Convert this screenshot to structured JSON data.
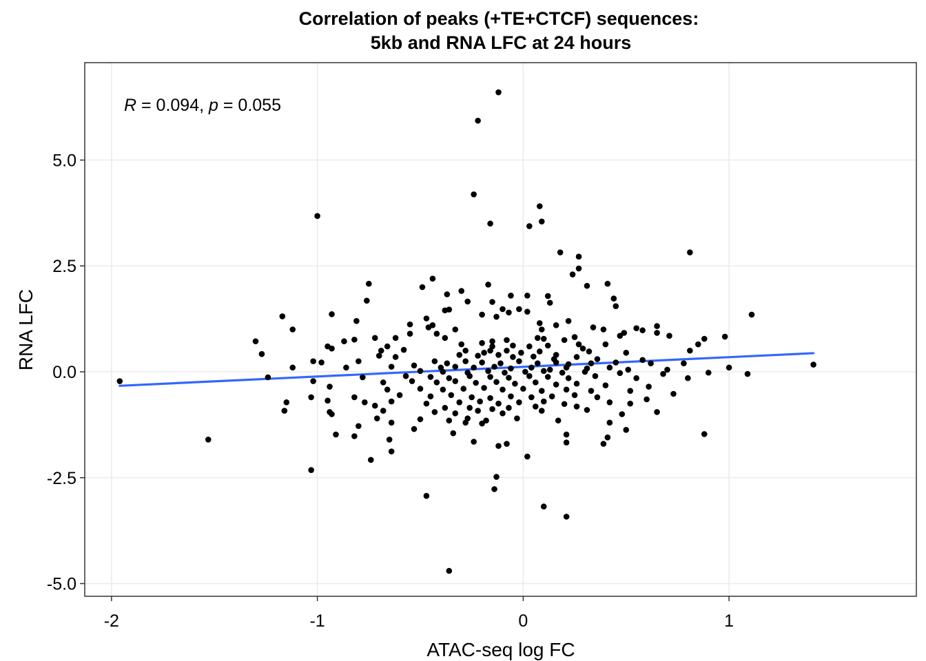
{
  "chart_data": {
    "type": "scatter",
    "title_line1": "Correlation of peaks (+TE+CTCF) sequences:",
    "title_line2": "5kb and RNA LFC at 24 hours",
    "xlabel": "ATAC-seq log FC",
    "ylabel": "RNA LFC",
    "xlim": [
      -2.13,
      1.91
    ],
    "ylim": [
      -5.3,
      7.3
    ],
    "x_ticks": [
      -2,
      -1,
      0,
      1
    ],
    "x_tick_labels": [
      "-2",
      "-1",
      "0",
      "1"
    ],
    "y_ticks": [
      -5,
      -2.5,
      0,
      2.5,
      5
    ],
    "y_tick_labels": [
      "-5.0",
      "-2.5",
      "0.0",
      "2.5",
      "5.0"
    ],
    "grid": true,
    "annotation": {
      "r_symbol": "R",
      "r_text": " = 0.094, ",
      "p_symbol": "p",
      "p_text": " = 0.055"
    },
    "fit_line": {
      "color": "#3366FF",
      "x": [
        -1.96,
        1.41
      ],
      "y": [
        -0.33,
        0.44
      ]
    },
    "point_color": "#000000",
    "points": [
      [
        -0.12,
        6.6
      ],
      [
        -0.22,
        5.93
      ],
      [
        -0.24,
        4.19
      ],
      [
        -1.0,
        3.68
      ],
      [
        -0.16,
        3.5
      ],
      [
        0.08,
        3.91
      ],
      [
        0.09,
        3.55
      ],
      [
        0.03,
        3.44
      ],
      [
        0.18,
        2.82
      ],
      [
        0.81,
        2.82
      ],
      [
        0.27,
        2.72
      ],
      [
        0.27,
        2.44
      ],
      [
        0.24,
        2.3
      ],
      [
        0.41,
        2.08
      ],
      [
        0.31,
        2.03
      ],
      [
        -0.75,
        2.08
      ],
      [
        -0.44,
        2.2
      ],
      [
        -0.49,
        2.0
      ],
      [
        -0.17,
        2.06
      ],
      [
        -0.3,
        1.91
      ],
      [
        -0.37,
        1.83
      ],
      [
        -0.06,
        1.8
      ],
      [
        0.02,
        1.8
      ],
      [
        0.12,
        1.79
      ],
      [
        -0.27,
        1.66
      ],
      [
        -0.15,
        1.65
      ],
      [
        -0.76,
        1.68
      ],
      [
        0.44,
        1.73
      ],
      [
        0.45,
        1.55
      ],
      [
        0.13,
        1.63
      ],
      [
        -0.36,
        1.47
      ],
      [
        -0.38,
        1.45
      ],
      [
        -0.1,
        1.48
      ],
      [
        -0.07,
        1.4
      ],
      [
        -0.02,
        1.48
      ],
      [
        0.02,
        1.42
      ],
      [
        -0.93,
        1.36
      ],
      [
        -1.17,
        1.31
      ],
      [
        1.11,
        1.35
      ],
      [
        -0.2,
        1.35
      ],
      [
        -0.13,
        1.3
      ],
      [
        -0.47,
        1.26
      ],
      [
        0.22,
        1.2
      ],
      [
        -0.81,
        1.2
      ],
      [
        0.08,
        1.15
      ],
      [
        0.16,
        1.1
      ],
      [
        -0.55,
        1.12
      ],
      [
        -0.44,
        1.1
      ],
      [
        -0.46,
        1.05
      ],
      [
        0.65,
        1.08
      ],
      [
        0.55,
        1.03
      ],
      [
        -1.12,
        1.0
      ],
      [
        0.34,
        1.05
      ],
      [
        -0.33,
        1.0
      ],
      [
        0.09,
        1.0
      ],
      [
        0.39,
        1.0
      ],
      [
        0.58,
        0.98
      ],
      [
        -0.55,
        0.9
      ],
      [
        0.65,
        0.92
      ],
      [
        0.49,
        0.92
      ],
      [
        -0.42,
        0.9
      ],
      [
        -0.38,
        0.8
      ],
      [
        -0.72,
        0.8
      ],
      [
        0.25,
        0.82
      ],
      [
        0.98,
        0.83
      ],
      [
        -0.87,
        0.72
      ],
      [
        -0.82,
        0.76
      ],
      [
        -0.62,
        0.8
      ],
      [
        -0.15,
        0.72
      ],
      [
        -0.08,
        0.75
      ],
      [
        0.07,
        0.8
      ],
      [
        0.1,
        0.78
      ],
      [
        0.2,
        0.75
      ],
      [
        0.47,
        0.85
      ],
      [
        0.71,
        0.85
      ],
      [
        -1.3,
        0.72
      ],
      [
        0.88,
        0.78
      ],
      [
        -0.95,
        0.6
      ],
      [
        -0.93,
        0.55
      ],
      [
        -0.66,
        0.6
      ],
      [
        -0.3,
        0.65
      ],
      [
        -0.2,
        0.68
      ],
      [
        -0.15,
        0.6
      ],
      [
        -0.05,
        0.62
      ],
      [
        0.03,
        0.6
      ],
      [
        0.12,
        0.62
      ],
      [
        0.27,
        0.65
      ],
      [
        0.29,
        0.55
      ],
      [
        0.4,
        0.65
      ],
      [
        0.85,
        0.65
      ],
      [
        -0.69,
        0.5
      ],
      [
        -0.58,
        0.52
      ],
      [
        -0.28,
        0.5
      ],
      [
        -0.19,
        0.45
      ],
      [
        -0.16,
        0.5
      ],
      [
        -0.08,
        0.5
      ],
      [
        -0.01,
        0.45
      ],
      [
        0.08,
        0.48
      ],
      [
        0.16,
        0.4
      ],
      [
        0.32,
        0.48
      ],
      [
        0.5,
        0.45
      ],
      [
        0.81,
        0.5
      ],
      [
        -1.27,
        0.42
      ],
      [
        -0.7,
        0.38
      ],
      [
        -0.62,
        0.35
      ],
      [
        -0.31,
        0.4
      ],
      [
        -0.22,
        0.38
      ],
      [
        -0.12,
        0.4
      ],
      [
        -0.05,
        0.35
      ],
      [
        0.05,
        0.36
      ],
      [
        0.15,
        0.3
      ],
      [
        0.26,
        0.35
      ],
      [
        0.36,
        0.3
      ],
      [
        0.58,
        0.28
      ],
      [
        -1.02,
        0.25
      ],
      [
        -0.98,
        0.22
      ],
      [
        -0.8,
        0.25
      ],
      [
        -0.43,
        0.25
      ],
      [
        -0.37,
        0.2
      ],
      [
        -0.28,
        0.25
      ],
      [
        -0.2,
        0.22
      ],
      [
        -0.11,
        0.2
      ],
      [
        -0.02,
        0.25
      ],
      [
        0.07,
        0.2
      ],
      [
        0.16,
        0.22
      ],
      [
        0.22,
        0.18
      ],
      [
        0.33,
        0.2
      ],
      [
        0.45,
        0.22
      ],
      [
        0.62,
        0.2
      ],
      [
        0.78,
        0.2
      ],
      [
        1.41,
        0.17
      ],
      [
        -1.12,
        0.1
      ],
      [
        -0.86,
        0.1
      ],
      [
        -0.64,
        0.12
      ],
      [
        -0.53,
        0.15
      ],
      [
        -0.4,
        0.1
      ],
      [
        -0.33,
        0.12
      ],
      [
        -0.24,
        0.1
      ],
      [
        -0.14,
        0.12
      ],
      [
        -0.06,
        0.08
      ],
      [
        0.04,
        0.1
      ],
      [
        0.13,
        0.05
      ],
      [
        0.21,
        0.1
      ],
      [
        0.31,
        0.08
      ],
      [
        0.42,
        0.1
      ],
      [
        0.51,
        0.05
      ],
      [
        0.7,
        0.05
      ],
      [
        1.0,
        0.1
      ],
      [
        -0.5,
        0.02
      ],
      [
        -0.39,
        0.0
      ],
      [
        -0.27,
        -0.02
      ],
      [
        -0.17,
        0.02
      ],
      [
        -0.09,
        -0.02
      ],
      [
        0.01,
        0.0
      ],
      [
        0.1,
        0.02
      ],
      [
        0.19,
        -0.02
      ],
      [
        0.3,
        0.0
      ],
      [
        0.47,
        -0.03
      ],
      [
        0.68,
        -0.05
      ],
      [
        0.9,
        -0.02
      ],
      [
        1.09,
        -0.05
      ],
      [
        -1.24,
        -0.13
      ],
      [
        -0.78,
        -0.13
      ],
      [
        -0.57,
        -0.1
      ],
      [
        -0.45,
        -0.12
      ],
      [
        -0.36,
        -0.15
      ],
      [
        -0.26,
        -0.1
      ],
      [
        -0.16,
        -0.12
      ],
      [
        -0.07,
        -0.14
      ],
      [
        0.03,
        -0.1
      ],
      [
        0.12,
        -0.12
      ],
      [
        0.22,
        -0.15
      ],
      [
        0.35,
        -0.1
      ],
      [
        0.55,
        -0.15
      ],
      [
        0.8,
        -0.15
      ],
      [
        -1.96,
        -0.22
      ],
      [
        -1.02,
        -0.22
      ],
      [
        -0.68,
        -0.25
      ],
      [
        -0.54,
        -0.22
      ],
      [
        -0.42,
        -0.25
      ],
      [
        -0.33,
        -0.22
      ],
      [
        -0.23,
        -0.26
      ],
      [
        -0.13,
        -0.24
      ],
      [
        -0.04,
        -0.28
      ],
      [
        0.06,
        -0.25
      ],
      [
        0.16,
        -0.3
      ],
      [
        0.26,
        -0.28
      ],
      [
        0.4,
        -0.32
      ],
      [
        0.61,
        -0.35
      ],
      [
        -0.94,
        -0.35
      ],
      [
        -0.66,
        -0.42
      ],
      [
        -0.5,
        -0.4
      ],
      [
        -0.39,
        -0.42
      ],
      [
        -0.29,
        -0.4
      ],
      [
        -0.19,
        -0.38
      ],
      [
        -0.1,
        -0.42
      ],
      [
        0.0,
        -0.4
      ],
      [
        0.09,
        -0.45
      ],
      [
        0.21,
        -0.42
      ],
      [
        0.33,
        -0.45
      ],
      [
        0.52,
        -0.45
      ],
      [
        0.73,
        -0.52
      ],
      [
        -1.03,
        -0.6
      ],
      [
        -0.82,
        -0.6
      ],
      [
        -0.6,
        -0.55
      ],
      [
        -0.45,
        -0.58
      ],
      [
        -0.35,
        -0.55
      ],
      [
        -0.25,
        -0.6
      ],
      [
        -0.16,
        -0.62
      ],
      [
        -0.06,
        -0.58
      ],
      [
        0.04,
        -0.6
      ],
      [
        0.14,
        -0.58
      ],
      [
        0.25,
        -0.55
      ],
      [
        0.36,
        -0.6
      ],
      [
        0.6,
        -0.65
      ],
      [
        -1.15,
        -0.72
      ],
      [
        -0.95,
        -0.68
      ],
      [
        -0.77,
        -0.72
      ],
      [
        -0.64,
        -0.7
      ],
      [
        -0.47,
        -0.75
      ],
      [
        -0.31,
        -0.72
      ],
      [
        -0.21,
        -0.7
      ],
      [
        -0.12,
        -0.75
      ],
      [
        -0.02,
        -0.72
      ],
      [
        0.1,
        -0.7
      ],
      [
        0.2,
        -0.76
      ],
      [
        0.42,
        -0.72
      ],
      [
        0.52,
        -0.75
      ],
      [
        -0.72,
        -0.8
      ],
      [
        -0.38,
        -0.85
      ],
      [
        -0.26,
        -0.85
      ],
      [
        -0.15,
        -0.88
      ],
      [
        -0.07,
        -0.85
      ],
      [
        0.06,
        -0.82
      ],
      [
        0.26,
        -0.82
      ],
      [
        -1.16,
        -0.92
      ],
      [
        -0.94,
        -0.95
      ],
      [
        -0.68,
        -0.92
      ],
      [
        -0.43,
        -0.95
      ],
      [
        -0.33,
        -0.98
      ],
      [
        -0.22,
        -0.92
      ],
      [
        -0.1,
        -0.98
      ],
      [
        0.09,
        -0.92
      ],
      [
        0.31,
        -0.9
      ],
      [
        0.48,
        -1.0
      ],
      [
        0.65,
        -0.95
      ],
      [
        -0.93,
        -1.0
      ],
      [
        -0.71,
        -1.1
      ],
      [
        -0.5,
        -1.12
      ],
      [
        -0.36,
        -1.15
      ],
      [
        -0.27,
        -1.1
      ],
      [
        -0.18,
        -1.15
      ],
      [
        -0.03,
        -1.1
      ],
      [
        0.17,
        -1.15
      ],
      [
        0.42,
        -1.2
      ],
      [
        -0.64,
        -1.2
      ],
      [
        -0.28,
        -1.2
      ],
      [
        -0.2,
        -1.22
      ],
      [
        -0.8,
        -1.28
      ],
      [
        -0.53,
        -1.35
      ],
      [
        -0.34,
        -1.45
      ],
      [
        0.21,
        -1.48
      ],
      [
        0.41,
        -1.55
      ],
      [
        -0.91,
        -1.48
      ],
      [
        -0.82,
        -1.52
      ],
      [
        0.88,
        -1.47
      ],
      [
        0.5,
        -1.37
      ],
      [
        -1.53,
        -1.6
      ],
      [
        -0.65,
        -1.6
      ],
      [
        -0.24,
        -1.65
      ],
      [
        -0.12,
        -1.75
      ],
      [
        -0.08,
        -1.7
      ],
      [
        0.21,
        -1.67
      ],
      [
        0.39,
        -1.7
      ],
      [
        -0.64,
        -1.88
      ],
      [
        0.02,
        -2.0
      ],
      [
        -0.74,
        -2.08
      ],
      [
        -1.03,
        -2.32
      ],
      [
        -0.13,
        -2.48
      ],
      [
        -0.47,
        -2.93
      ],
      [
        -0.14,
        -2.77
      ],
      [
        0.1,
        -3.18
      ],
      [
        0.21,
        -3.42
      ],
      [
        -0.36,
        -4.7
      ]
    ]
  }
}
